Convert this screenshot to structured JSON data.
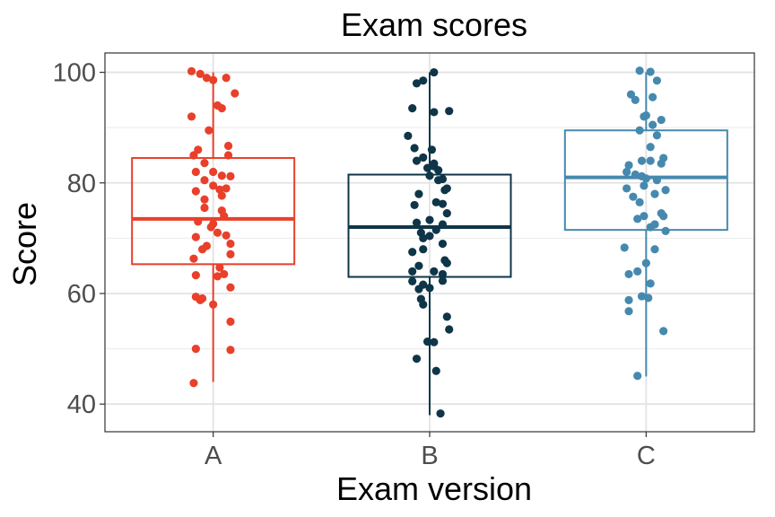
{
  "chart_data": {
    "type": "box",
    "title": "Exam scores",
    "xlabel": "Exam version",
    "ylabel": "Score",
    "ylim": [
      35,
      103.5
    ],
    "y_ticks": [
      40,
      60,
      80,
      100
    ],
    "grid": true,
    "categories": [
      "A",
      "B",
      "C"
    ],
    "colors": {
      "A": "#e8402a",
      "B": "#0f3548",
      "C": "#4689ae"
    },
    "series": [
      {
        "category": "A",
        "box": {
          "min": 44,
          "q1": 65.3,
          "median": 73.5,
          "q3": 84.5,
          "max": 100
        },
        "points": [
          [
            -0.1,
            100.2
          ],
          [
            -0.06,
            99.7
          ],
          [
            -0.03,
            99.0
          ],
          [
            0.0,
            98.6
          ],
          [
            0.06,
            99.0
          ],
          [
            0.1,
            96.2
          ],
          [
            0.02,
            94.0
          ],
          [
            0.04,
            93.5
          ],
          [
            -0.1,
            92.0
          ],
          [
            -0.02,
            89.5
          ],
          [
            0.07,
            86.7
          ],
          [
            -0.07,
            86.0
          ],
          [
            -0.09,
            85.0
          ],
          [
            0.07,
            85.0
          ],
          [
            -0.04,
            83.6
          ],
          [
            0.0,
            82.0
          ],
          [
            -0.08,
            82.0
          ],
          [
            0.04,
            81.3
          ],
          [
            0.08,
            81.2
          ],
          [
            -0.04,
            80.5
          ],
          [
            0.0,
            79.5
          ],
          [
            0.06,
            79.0
          ],
          [
            0.03,
            78.8
          ],
          [
            -0.08,
            78.5
          ],
          [
            0.04,
            77.7
          ],
          [
            -0.04,
            77.0
          ],
          [
            -0.04,
            75.5
          ],
          [
            0.04,
            75.0
          ],
          [
            0.05,
            74.0
          ],
          [
            -0.07,
            73.0
          ],
          [
            0.0,
            72.6
          ],
          [
            -0.01,
            72.0
          ],
          [
            0.02,
            71.0
          ],
          [
            0.06,
            70.5
          ],
          [
            -0.08,
            70.2
          ],
          [
            0.08,
            69.0
          ],
          [
            -0.03,
            68.6
          ],
          [
            -0.05,
            68.0
          ],
          [
            0.08,
            67.1
          ],
          [
            -0.09,
            66.3
          ],
          [
            0.03,
            64.7
          ],
          [
            0.05,
            63.5
          ],
          [
            -0.08,
            63.3
          ],
          [
            0.02,
            63.1
          ],
          [
            0.08,
            61.1
          ],
          [
            -0.08,
            59.4
          ],
          [
            -0.05,
            59.1
          ],
          [
            -0.06,
            58.8
          ],
          [
            0.0,
            58.0
          ],
          [
            0.08,
            54.9
          ],
          [
            -0.08,
            50.0
          ],
          [
            0.08,
            49.8
          ],
          [
            -0.09,
            43.8
          ]
        ]
      },
      {
        "category": "B",
        "box": {
          "min": 38,
          "q1": 63,
          "median": 72,
          "q3": 81.5,
          "max": 100
        },
        "points": [
          [
            0.02,
            100.0
          ],
          [
            -0.06,
            98.0
          ],
          [
            -0.03,
            98.5
          ],
          [
            -0.08,
            93.5
          ],
          [
            0.09,
            93.0
          ],
          [
            0.02,
            92.8
          ],
          [
            -0.1,
            88.5
          ],
          [
            -0.07,
            86.3
          ],
          [
            0.01,
            86.0
          ],
          [
            -0.03,
            84.6
          ],
          [
            -0.06,
            84.0
          ],
          [
            0.02,
            83.5
          ],
          [
            0.02,
            83.0
          ],
          [
            -0.01,
            82.7
          ],
          [
            0.04,
            82.3
          ],
          [
            0.0,
            81.3
          ],
          [
            0.04,
            80.5
          ],
          [
            0.06,
            80.7
          ],
          [
            0.08,
            79.0
          ],
          [
            0.07,
            78.7
          ],
          [
            -0.05,
            78.0
          ],
          [
            0.03,
            76.5
          ],
          [
            0.06,
            76.2
          ],
          [
            -0.07,
            76.0
          ],
          [
            0.08,
            74.5
          ],
          [
            0.0,
            73.3
          ],
          [
            -0.06,
            72.8
          ],
          [
            0.06,
            72.5
          ],
          [
            0.03,
            71.5
          ],
          [
            -0.04,
            71.0
          ],
          [
            0.0,
            70.4
          ],
          [
            -0.03,
            70.0
          ],
          [
            0.06,
            69.0
          ],
          [
            -0.03,
            68.0
          ],
          [
            -0.08,
            67.5
          ],
          [
            0.07,
            66.0
          ],
          [
            0.08,
            65.5
          ],
          [
            -0.05,
            65.0
          ],
          [
            -0.08,
            64.0
          ],
          [
            0.02,
            64.0
          ],
          [
            0.06,
            63.5
          ],
          [
            -0.08,
            62.2
          ],
          [
            0.06,
            62.3
          ],
          [
            -0.03,
            61.6
          ],
          [
            0.0,
            61.0
          ],
          [
            -0.05,
            60.8
          ],
          [
            -0.04,
            59.0
          ],
          [
            -0.03,
            58.0
          ],
          [
            0.08,
            55.8
          ],
          [
            0.09,
            53.5
          ],
          [
            -0.01,
            51.3
          ],
          [
            0.02,
            51.2
          ],
          [
            -0.06,
            48.2
          ],
          [
            0.03,
            46.0
          ],
          [
            0.05,
            38.3
          ]
        ]
      },
      {
        "category": "C",
        "box": {
          "min": 45,
          "q1": 71.5,
          "median": 81.0,
          "q3": 89.5,
          "max": 100
        },
        "points": [
          [
            -0.03,
            100.3
          ],
          [
            0.02,
            100.1
          ],
          [
            0.05,
            98.5
          ],
          [
            -0.07,
            96.0
          ],
          [
            -0.05,
            95.0
          ],
          [
            0.03,
            95.5
          ],
          [
            0.0,
            92.2
          ],
          [
            -0.01,
            92.0
          ],
          [
            0.07,
            91.4
          ],
          [
            0.03,
            90.5
          ],
          [
            -0.03,
            89.5
          ],
          [
            0.05,
            88.6
          ],
          [
            0.02,
            86.5
          ],
          [
            0.08,
            84.5
          ],
          [
            0.02,
            84.0
          ],
          [
            -0.02,
            84.0
          ],
          [
            0.07,
            83.5
          ],
          [
            -0.08,
            83.2
          ],
          [
            -0.09,
            82.0
          ],
          [
            -0.05,
            81.5
          ],
          [
            -0.02,
            81.2
          ],
          [
            0.0,
            80.8
          ],
          [
            0.05,
            80.5
          ],
          [
            -0.01,
            79.5
          ],
          [
            0.09,
            78.7
          ],
          [
            -0.09,
            79.0
          ],
          [
            0.04,
            78.0
          ],
          [
            -0.06,
            77.5
          ],
          [
            -0.03,
            76.5
          ],
          [
            0.07,
            74.5
          ],
          [
            -0.01,
            74.0
          ],
          [
            0.08,
            74.0
          ],
          [
            -0.04,
            73.5
          ],
          [
            0.04,
            72.5
          ],
          [
            0.02,
            72.0
          ],
          [
            0.09,
            71.3
          ],
          [
            -0.1,
            68.3
          ],
          [
            0.04,
            68.0
          ],
          [
            0.0,
            65.5
          ],
          [
            -0.04,
            64.0
          ],
          [
            -0.08,
            63.5
          ],
          [
            0.02,
            61.8
          ],
          [
            -0.02,
            59.5
          ],
          [
            -0.08,
            58.8
          ],
          [
            0.01,
            59.2
          ],
          [
            -0.08,
            56.8
          ],
          [
            0.08,
            53.2
          ],
          [
            -0.04,
            45.1
          ]
        ]
      }
    ]
  }
}
